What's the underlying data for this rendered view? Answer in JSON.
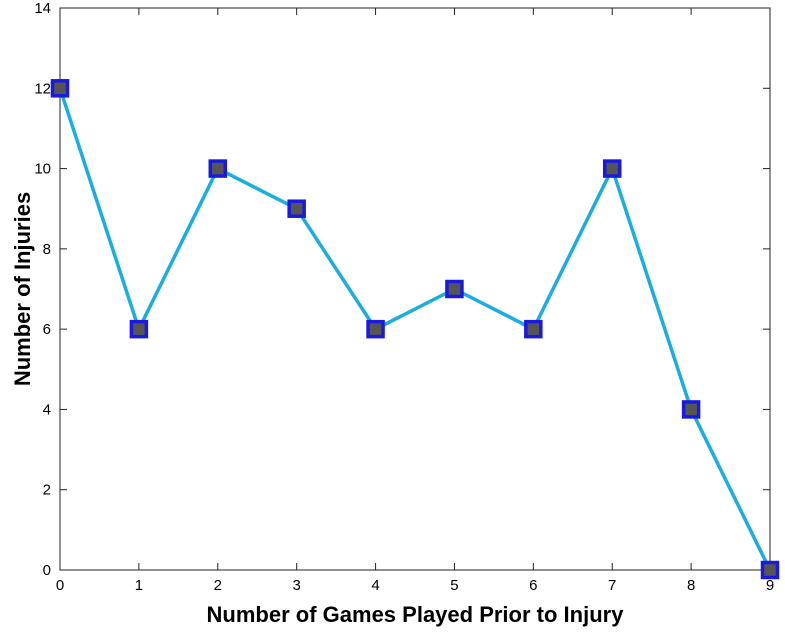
{
  "chart_data": {
    "type": "line",
    "title": "",
    "xlabel": "Number of Games Played Prior to Injury",
    "ylabel": "Number of Injuries",
    "x": [
      0,
      1,
      2,
      3,
      4,
      5,
      6,
      7,
      8,
      9
    ],
    "series": [
      {
        "values": [
          12,
          6,
          10,
          9,
          6,
          7,
          6,
          10,
          4,
          0
        ],
        "line_color": "#1aaee0",
        "marker": "square",
        "marker_fill": "#555555",
        "marker_edge": "#1a1adf"
      }
    ],
    "xlim": [
      0,
      9
    ],
    "ylim": [
      0,
      14
    ],
    "xticks": [
      0,
      1,
      2,
      3,
      4,
      5,
      6,
      7,
      8,
      9
    ],
    "yticks": [
      0,
      2,
      4,
      6,
      8,
      10,
      12,
      14
    ],
    "grid": false,
    "box": true
  }
}
